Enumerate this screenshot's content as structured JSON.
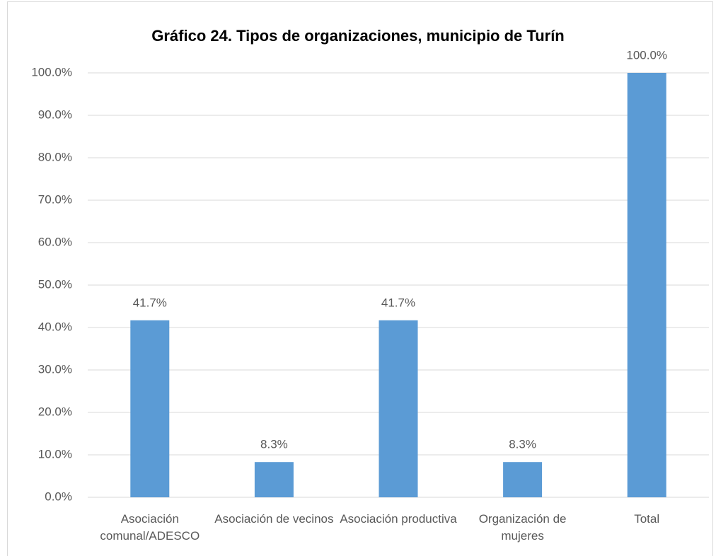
{
  "chart_data": {
    "type": "bar",
    "title": "Gráfico 24. Tipos de organizaciones, municipio de Turín",
    "categories": [
      "Asociación comunal/ADESCO",
      "Asociación de vecinos",
      "Asociación productiva",
      "Organización de mujeres",
      "Total"
    ],
    "values": [
      41.7,
      8.3,
      41.7,
      8.3,
      100.0
    ],
    "value_labels": [
      "41.7%",
      "8.3%",
      "41.7%",
      "8.3%",
      "100.0%"
    ],
    "color": "#5b9bd5",
    "ylim": [
      0,
      100
    ],
    "yticks": [
      {
        "value": 0,
        "label": "0.0%"
      },
      {
        "value": 10,
        "label": "10.0%"
      },
      {
        "value": 20,
        "label": "20.0%"
      },
      {
        "value": 30,
        "label": "30.0%"
      },
      {
        "value": 40,
        "label": "40.0%"
      },
      {
        "value": 50,
        "label": "50.0%"
      },
      {
        "value": 60,
        "label": "60.0%"
      },
      {
        "value": 70,
        "label": "70.0%"
      },
      {
        "value": 80,
        "label": "80.0%"
      },
      {
        "value": 90,
        "label": "90.0%"
      },
      {
        "value": 100,
        "label": "100.0%"
      }
    ],
    "grid": true
  }
}
